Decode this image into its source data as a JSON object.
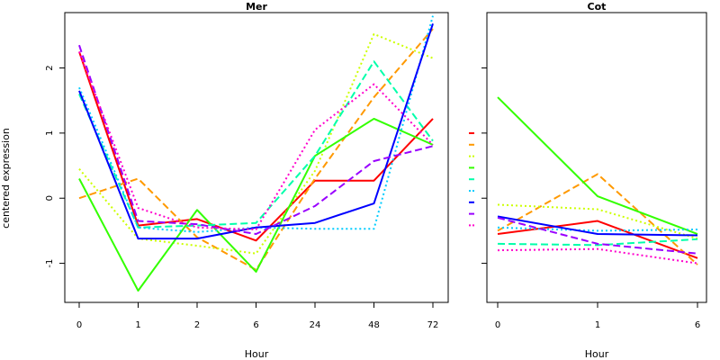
{
  "chart_data": [
    {
      "type": "line",
      "title": "Mer",
      "xlabel": "Hour",
      "ylabel": "centered expression",
      "categories": [
        "0",
        "1",
        "2",
        "6",
        "24",
        "48",
        "72"
      ],
      "yticks": [
        -1,
        0,
        1,
        2
      ],
      "ylim": [
        -1.6,
        2.85
      ],
      "grid": false,
      "series": [
        {
          "color": "#FF0000",
          "dash": "solid",
          "values": [
            2.25,
            -0.42,
            -0.32,
            -0.65,
            0.27,
            0.27,
            1.22
          ]
        },
        {
          "color": "#FF9900",
          "dash": "dashed",
          "values": [
            0.0,
            0.3,
            -0.6,
            -1.1,
            0.3,
            1.55,
            2.6
          ]
        },
        {
          "color": "#CCFF00",
          "dash": "dotted",
          "values": [
            0.45,
            -0.62,
            -0.73,
            -0.85,
            0.42,
            2.52,
            2.15
          ]
        },
        {
          "color": "#33FF00",
          "dash": "solid",
          "values": [
            0.3,
            -1.42,
            -0.18,
            -1.13,
            0.65,
            1.22,
            0.82
          ]
        },
        {
          "color": "#00FFAA",
          "dash": "dashed",
          "values": [
            1.6,
            -0.45,
            -0.42,
            -0.38,
            0.65,
            2.1,
            0.88
          ]
        },
        {
          "color": "#00CCFF",
          "dash": "dotted",
          "values": [
            1.7,
            -0.45,
            -0.52,
            -0.45,
            -0.47,
            -0.47,
            2.8
          ]
        },
        {
          "color": "#0000FF",
          "dash": "solid",
          "values": [
            1.65,
            -0.62,
            -0.62,
            -0.45,
            -0.38,
            -0.08,
            2.68
          ]
        },
        {
          "color": "#9900FF",
          "dash": "dashed",
          "values": [
            2.35,
            -0.35,
            -0.4,
            -0.55,
            -0.12,
            0.57,
            0.8
          ]
        },
        {
          "color": "#FF00CC",
          "dash": "dotted",
          "values": [
            2.25,
            -0.15,
            -0.45,
            -0.48,
            1.05,
            1.75,
            0.82
          ]
        }
      ]
    },
    {
      "type": "line",
      "title": "Cot",
      "xlabel": "Hour",
      "categories": [
        "0",
        "1",
        "6"
      ],
      "ylim": [
        -1.6,
        2.85
      ],
      "grid": false,
      "series": [
        {
          "color": "#FF0000",
          "dash": "solid",
          "values": [
            -0.55,
            -0.35,
            -0.92
          ]
        },
        {
          "color": "#FF9900",
          "dash": "dashed",
          "values": [
            -0.5,
            0.37,
            -1.02
          ]
        },
        {
          "color": "#CCFF00",
          "dash": "dotted",
          "values": [
            -0.1,
            -0.17,
            -0.62
          ]
        },
        {
          "color": "#33FF00",
          "dash": "solid",
          "values": [
            1.55,
            0.03,
            -0.55
          ]
        },
        {
          "color": "#00FFAA",
          "dash": "dashed",
          "values": [
            -0.7,
            -0.72,
            -0.63
          ]
        },
        {
          "color": "#00CCFF",
          "dash": "dotted",
          "values": [
            -0.45,
            -0.5,
            -0.48
          ]
        },
        {
          "color": "#0000FF",
          "dash": "solid",
          "values": [
            -0.28,
            -0.55,
            -0.57
          ]
        },
        {
          "color": "#9900FF",
          "dash": "dashed",
          "values": [
            -0.3,
            -0.7,
            -0.85
          ]
        },
        {
          "color": "#FF00CC",
          "dash": "dotted",
          "values": [
            -0.8,
            -0.78,
            -1.0
          ]
        }
      ]
    }
  ]
}
